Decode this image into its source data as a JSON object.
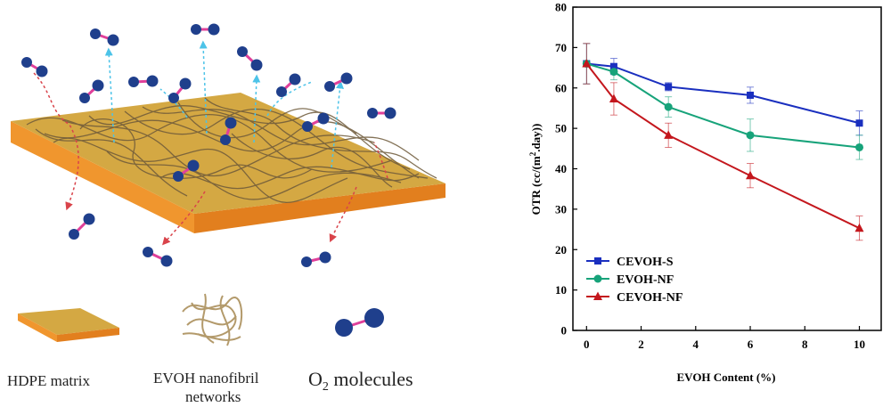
{
  "illustration": {
    "legend": {
      "hdpe_label": "HDPE matrix",
      "evoh_label_line1": "EVOH nanofibril",
      "evoh_label_line2": "networks",
      "o2_label_main": "O",
      "o2_label_sub": "2",
      "o2_label_rest": " molecules"
    },
    "icons": [
      "o2-molecule-icon",
      "hdpe-matrix-icon",
      "nanofibril-network-icon"
    ],
    "colors": {
      "slab_top": "#d4a843",
      "slab_side": "#f0962e",
      "fiber": "#6e5a3a",
      "molecule": "#1f3f8c",
      "bond": "#e0409a",
      "path_up": "#4cc3e8",
      "path_down": "#d9434a"
    }
  },
  "chart_data": {
    "type": "line",
    "xlabel": "EVOH Content (%)",
    "ylabel_main": "OTR (cc/(m",
    "ylabel_sup": "2",
    "ylabel_rest": ".day))",
    "xlim": [
      -0.5,
      10.8
    ],
    "ylim": [
      0,
      80
    ],
    "xticks": [
      0,
      2,
      4,
      6,
      8,
      10
    ],
    "yticks": [
      0,
      10,
      20,
      30,
      40,
      50,
      60,
      70,
      80
    ],
    "x": [
      0,
      1,
      3,
      6,
      10
    ],
    "series": [
      {
        "name": "CEVOH-S",
        "marker": "square",
        "color": "#1a2fbf",
        "values": [
          66,
          65.3,
          60.3,
          58.2,
          51.3
        ],
        "errors": [
          5,
          2,
          1,
          2,
          3
        ]
      },
      {
        "name": "EVOH-NF",
        "marker": "circle",
        "color": "#17a37a",
        "values": [
          66,
          64,
          55.3,
          48.3,
          45.3
        ],
        "errors": [
          5,
          2,
          2.5,
          4,
          3
        ]
      },
      {
        "name": "CEVOH-NF",
        "marker": "triangle",
        "color": "#c4171d",
        "values": [
          66,
          57.3,
          48.3,
          38.3,
          25.3
        ],
        "errors": [
          5,
          4,
          3,
          3,
          3
        ]
      }
    ],
    "legend_position": "bottom-left",
    "grid": false
  }
}
